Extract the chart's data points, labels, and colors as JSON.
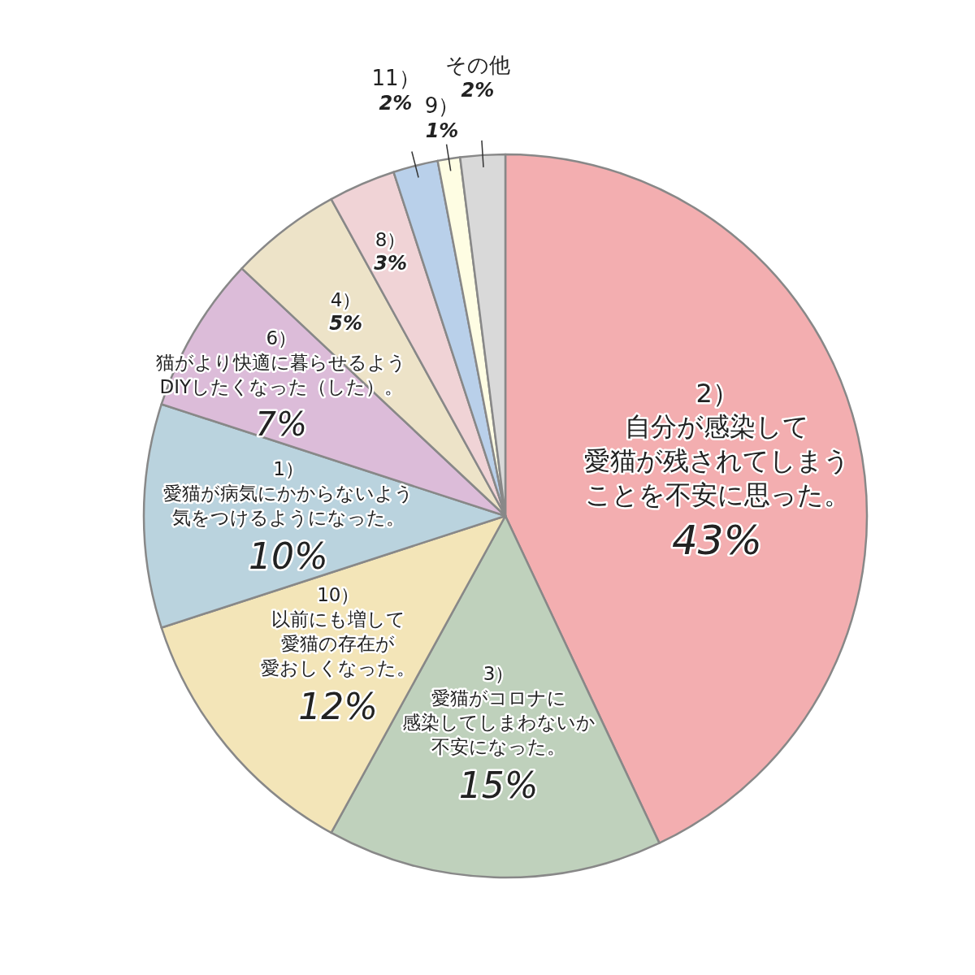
{
  "chart_data": {
    "type": "pie",
    "categories": [
      "2）自分が感染して愛猫が残されてしまうことを不安に思った。",
      "3）愛猫がコロナに感染してしまわないか不安になった。",
      "10）以前にも増して愛猫の存在が愛おしくなった。",
      "1）愛猫が病気にかからないよう気をつけるようになった。",
      "6）猫がより快適に暮らせるようDIYしたくなった（した）。",
      "4）",
      "8）",
      "11）",
      "9）",
      "その他"
    ],
    "values": [
      43,
      15,
      12,
      10,
      7,
      5,
      3,
      2,
      1,
      2
    ],
    "value_labels": [
      "43%",
      "15%",
      "12%",
      "10%",
      "7%",
      "5%",
      "3%",
      "2%",
      "1%",
      "2%"
    ],
    "colors": [
      "#f3aeb0",
      "#bfd1bc",
      "#f3e5b8",
      "#bad3de",
      "#dcbcd9",
      "#ede3c8",
      "#f0d3d6",
      "#b9d0ea",
      "#fefde3",
      "#d9d9d9"
    ]
  }
}
